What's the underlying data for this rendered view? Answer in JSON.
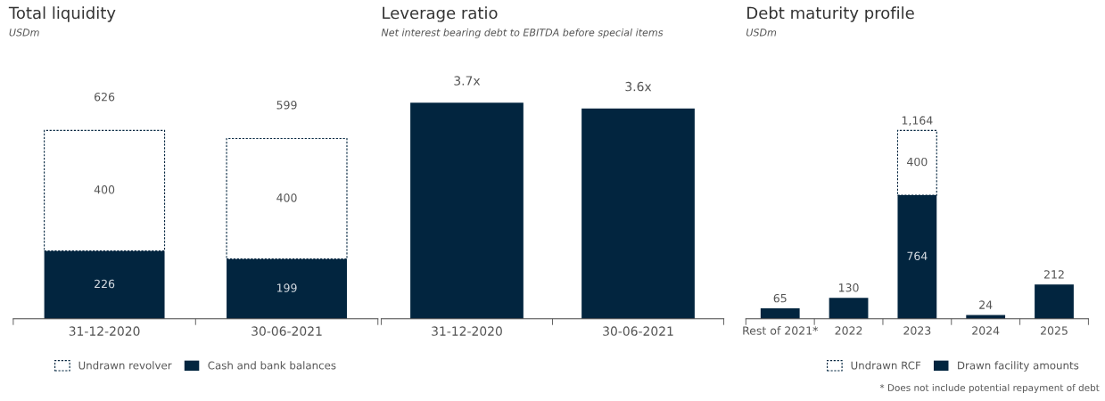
{
  "chart_data": [
    {
      "type": "bar",
      "title": "Total liquidity",
      "subtitle": "USDm",
      "stacked": true,
      "categories": [
        "31-12-2020",
        "30-06-2021"
      ],
      "series": [
        {
          "name": "Cash and bank balances",
          "color": "#02253f",
          "values": [
            226,
            199
          ],
          "value_labels": [
            "226",
            "199"
          ]
        },
        {
          "name": "Undrawn revolver",
          "color": "#ffffff",
          "line_style": "dashed",
          "values": [
            400,
            400
          ],
          "value_labels": [
            "400",
            "400"
          ]
        }
      ],
      "totals": [
        "626",
        "599"
      ],
      "legend": "bottom"
    },
    {
      "type": "bar",
      "title": "Leverage ratio",
      "subtitle": "Net interest bearing debt to EBITDA before special items",
      "categories": [
        "31-12-2020",
        "30-06-2021"
      ],
      "series": [
        {
          "color": "#02253f",
          "values": [
            3.7,
            3.6
          ],
          "value_labels": [
            "3.7x",
            "3.6x"
          ]
        }
      ]
    },
    {
      "type": "bar",
      "title": "Debt maturity profile",
      "subtitle": "USDm",
      "stacked": true,
      "categories": [
        "Rest of 2021*",
        "2022",
        "2023",
        "2024",
        "2025"
      ],
      "series": [
        {
          "name": "Drawn facility amounts",
          "color": "#02253f",
          "values": [
            65,
            130,
            764,
            24,
            212
          ],
          "value_labels": [
            "65",
            "130",
            "764",
            "24",
            "212"
          ]
        },
        {
          "name": "Undrawn RCF",
          "color": "#ffffff",
          "line_style": "dashed",
          "values": [
            null,
            null,
            400,
            null,
            null
          ],
          "value_labels": [
            null,
            null,
            "400",
            null,
            null
          ]
        }
      ],
      "totals": [
        null,
        null,
        "1,164",
        null,
        null
      ],
      "legend": "bottom",
      "annotations": [
        "* Does not include potential repayment of debt"
      ]
    }
  ]
}
